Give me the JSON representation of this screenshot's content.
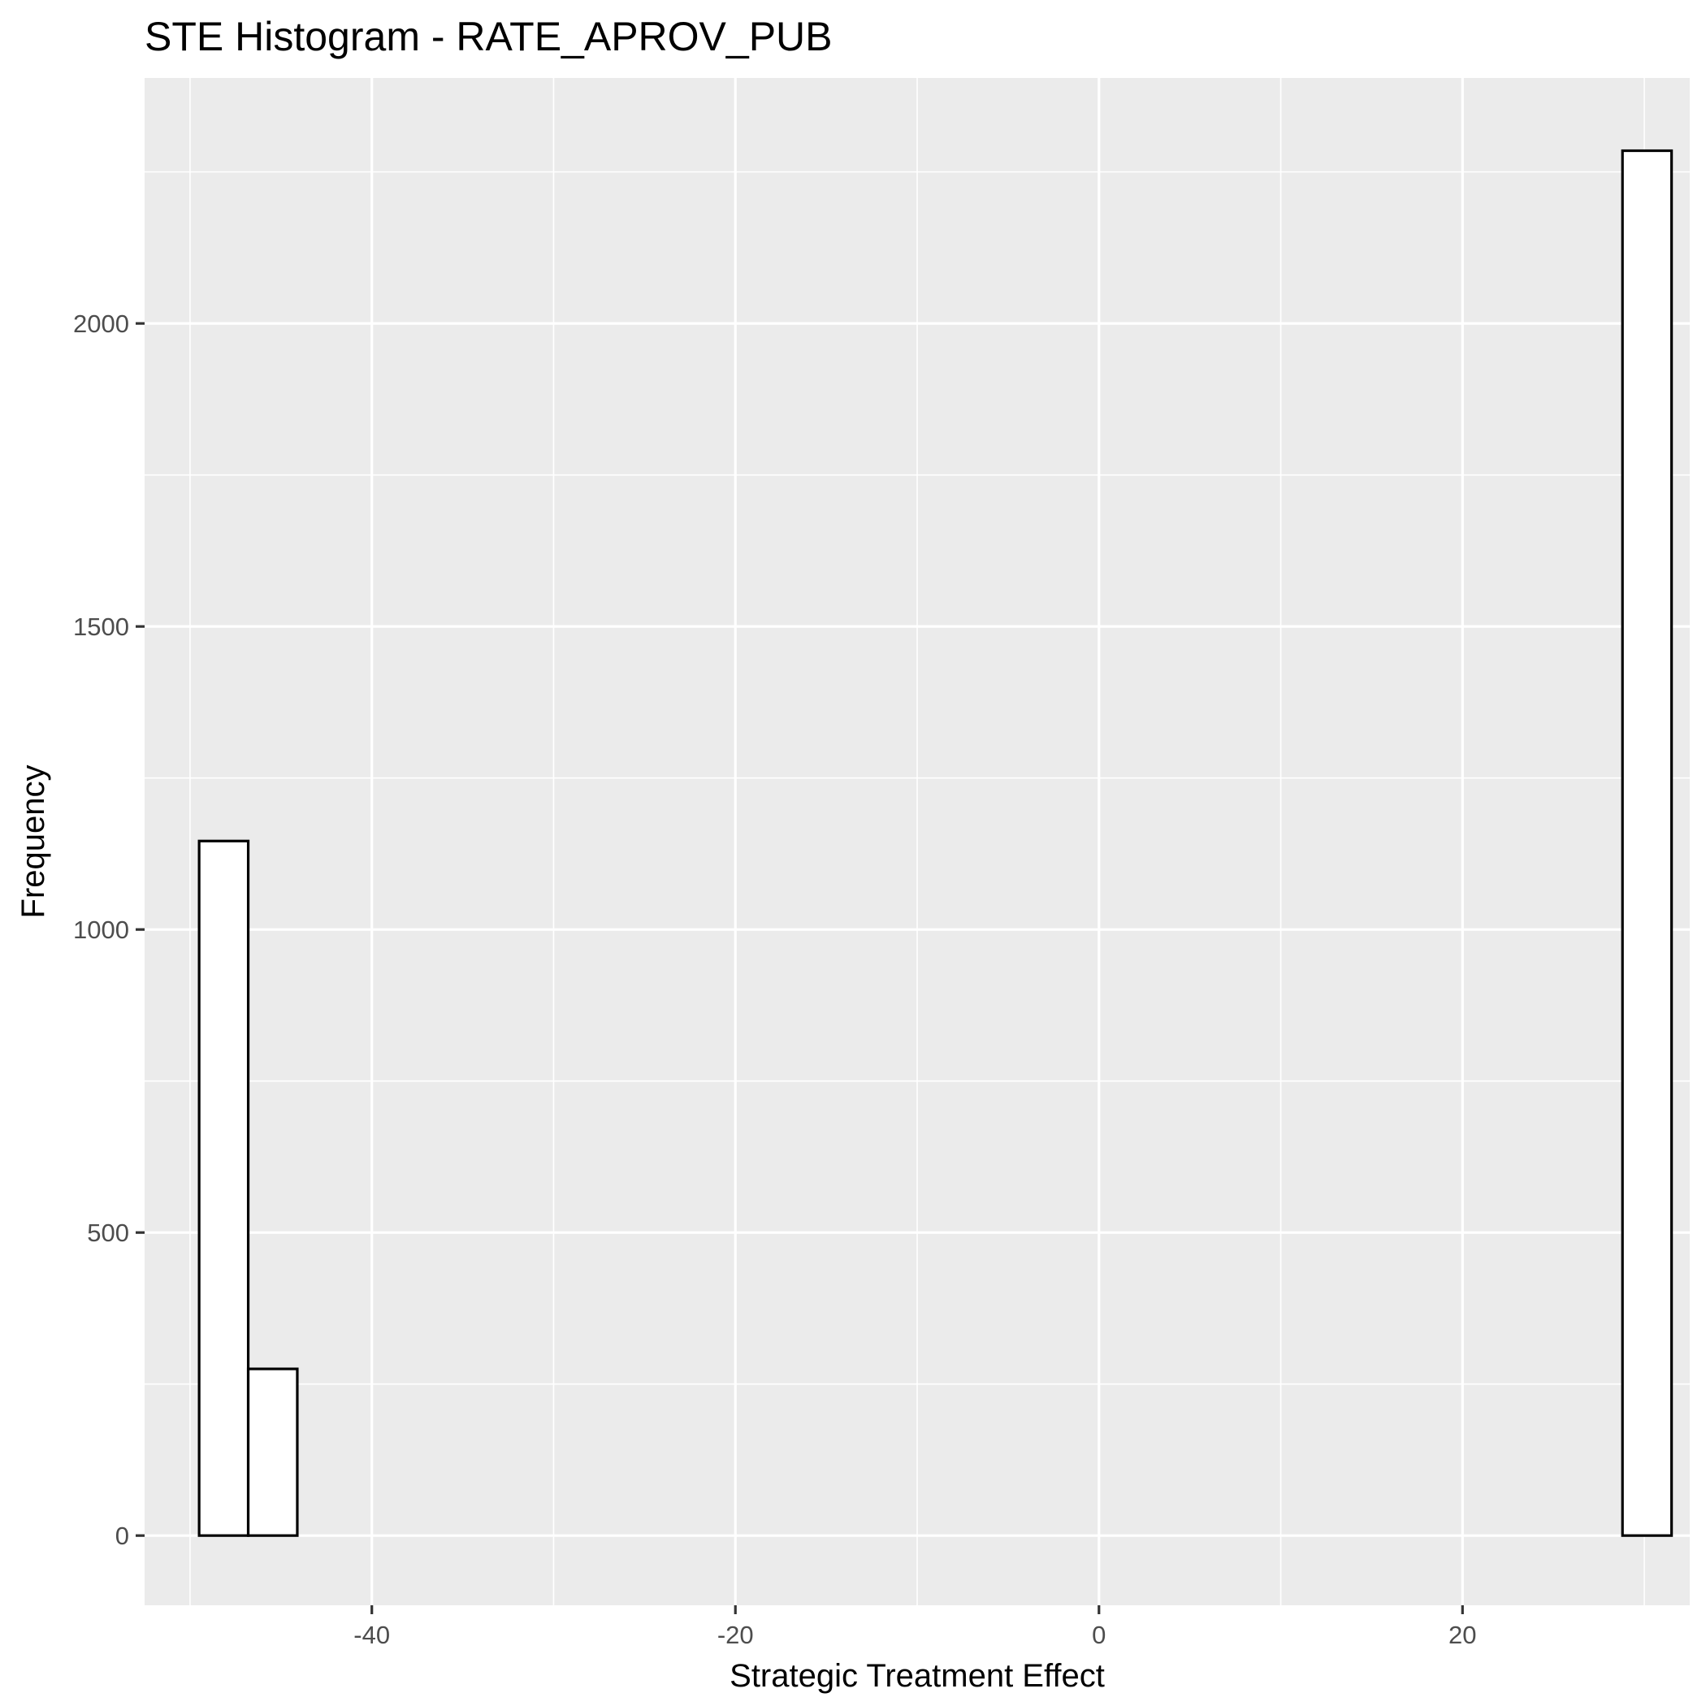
{
  "chart_data": {
    "type": "bar",
    "title": "STE Histogram -  RATE_APROV_PUB",
    "xlabel": "Strategic Treatment Effect",
    "ylabel": "Frequency",
    "xlim": [
      -52.5,
      32.5
    ],
    "ylim": [
      -115,
      2405
    ],
    "x_ticks": [
      -40,
      -20,
      0,
      20
    ],
    "x_tick_labels": [
      "-40",
      "-20",
      "0",
      "20"
    ],
    "x_minor_ticks": [
      -50,
      -30,
      -10,
      10,
      30
    ],
    "y_ticks": [
      0,
      500,
      1000,
      1500,
      2000
    ],
    "y_tick_labels": [
      "0",
      "500",
      "1000",
      "1500",
      "2000"
    ],
    "y_minor_ticks": [
      250,
      750,
      1250,
      1750,
      2250
    ],
    "grid": true,
    "bin_width": 2.7,
    "bins": [
      {
        "x0": -49.5,
        "x1": -46.8,
        "count": 1146
      },
      {
        "x0": -46.8,
        "x1": -44.1,
        "count": 275
      },
      {
        "x0": -44.1,
        "x1": -41.4,
        "count": 0
      },
      {
        "x0": -41.4,
        "x1": -38.7,
        "count": 0
      },
      {
        "x0": -38.7,
        "x1": -36.0,
        "count": 0
      },
      {
        "x0": -36.0,
        "x1": -33.3,
        "count": 0
      },
      {
        "x0": -33.3,
        "x1": -30.6,
        "count": 0
      },
      {
        "x0": -30.6,
        "x1": -27.9,
        "count": 0
      },
      {
        "x0": -27.9,
        "x1": -25.2,
        "count": 0
      },
      {
        "x0": -25.2,
        "x1": -22.5,
        "count": 0
      },
      {
        "x0": -22.5,
        "x1": -19.8,
        "count": 0
      },
      {
        "x0": -19.8,
        "x1": -17.1,
        "count": 0
      },
      {
        "x0": -17.1,
        "x1": -14.4,
        "count": 0
      },
      {
        "x0": -14.4,
        "x1": -11.7,
        "count": 0
      },
      {
        "x0": -11.7,
        "x1": -9.0,
        "count": 0
      },
      {
        "x0": -9.0,
        "x1": -6.3,
        "count": 0
      },
      {
        "x0": -6.3,
        "x1": -3.6,
        "count": 0
      },
      {
        "x0": -3.6,
        "x1": -0.9,
        "count": 0
      },
      {
        "x0": -0.9,
        "x1": 1.8,
        "count": 0
      },
      {
        "x0": 1.8,
        "x1": 4.5,
        "count": 0
      },
      {
        "x0": 4.5,
        "x1": 7.2,
        "count": 0
      },
      {
        "x0": 7.2,
        "x1": 9.9,
        "count": 0
      },
      {
        "x0": 9.9,
        "x1": 12.6,
        "count": 0
      },
      {
        "x0": 12.6,
        "x1": 15.3,
        "count": 0
      },
      {
        "x0": 15.3,
        "x1": 18.0,
        "count": 0
      },
      {
        "x0": 18.0,
        "x1": 20.7,
        "count": 0
      },
      {
        "x0": 20.7,
        "x1": 23.4,
        "count": 0
      },
      {
        "x0": 23.4,
        "x1": 26.1,
        "count": 0
      },
      {
        "x0": 26.1,
        "x1": 28.8,
        "count": 0
      },
      {
        "x0": 28.8,
        "x1": 31.5,
        "count": 2285
      }
    ]
  }
}
